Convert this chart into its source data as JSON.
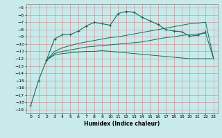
{
  "xlabel": "Humidex (Indice chaleur)",
  "background_color": "#c8eaea",
  "grid_color": "#b0c8c8",
  "line_color": "#1a6b5a",
  "xlim": [
    -0.5,
    23.5
  ],
  "ylim": [
    -19.5,
    -4.5
  ],
  "yticks": [
    -19,
    -18,
    -17,
    -16,
    -15,
    -14,
    -13,
    -12,
    -11,
    -10,
    -9,
    -8,
    -7,
    -6,
    -5
  ],
  "xticks": [
    0,
    1,
    2,
    3,
    4,
    5,
    6,
    7,
    8,
    9,
    10,
    11,
    12,
    13,
    14,
    15,
    16,
    17,
    18,
    19,
    20,
    21,
    22,
    23
  ],
  "curve1_x": [
    0,
    1,
    2,
    3,
    4,
    5,
    6,
    7,
    8,
    9,
    10,
    11,
    12,
    13,
    14,
    15,
    16,
    17,
    18,
    19,
    20,
    21,
    22
  ],
  "curve1_y": [
    -18.5,
    -15.0,
    -12.2,
    -9.3,
    -8.7,
    -8.7,
    -8.2,
    -7.5,
    -7.0,
    -7.2,
    -7.4,
    -5.8,
    -5.5,
    -5.6,
    -6.3,
    -6.8,
    -7.3,
    -8.0,
    -8.2,
    -8.3,
    -8.9,
    -8.8,
    -8.3
  ],
  "curve2_x": [
    2,
    3,
    4,
    5,
    6,
    7,
    8,
    9,
    10,
    11,
    12,
    13,
    14,
    15,
    16,
    17,
    18,
    19,
    20,
    21,
    22,
    23
  ],
  "curve2_y": [
    -12.2,
    -11.5,
    -11.3,
    -11.2,
    -11.1,
    -11.0,
    -11.0,
    -10.9,
    -11.0,
    -11.1,
    -11.2,
    -11.3,
    -11.4,
    -11.5,
    -11.6,
    -11.7,
    -11.8,
    -11.9,
    -12.0,
    -12.0,
    -12.0,
    -12.0
  ],
  "curve3_x": [
    2,
    3,
    4,
    5,
    6,
    7,
    8,
    9,
    10,
    11,
    12,
    13,
    14,
    15,
    16,
    17,
    18,
    19,
    20,
    21,
    22,
    23
  ],
  "curve3_y": [
    -12.2,
    -11.3,
    -11.0,
    -10.8,
    -10.6,
    -10.4,
    -10.3,
    -10.2,
    -10.1,
    -10.0,
    -9.9,
    -9.8,
    -9.7,
    -9.5,
    -9.3,
    -9.1,
    -9.0,
    -8.8,
    -8.7,
    -8.6,
    -8.5,
    -12.0
  ],
  "curve4_x": [
    2,
    3,
    4,
    5,
    6,
    7,
    8,
    9,
    10,
    11,
    12,
    13,
    14,
    15,
    16,
    17,
    18,
    19,
    20,
    21,
    22,
    23
  ],
  "curve4_y": [
    -12.2,
    -11.0,
    -10.5,
    -10.2,
    -9.9,
    -9.7,
    -9.5,
    -9.3,
    -9.1,
    -9.0,
    -8.8,
    -8.6,
    -8.4,
    -8.2,
    -8.0,
    -7.8,
    -7.6,
    -7.4,
    -7.2,
    -7.1,
    -7.0,
    -12.0
  ]
}
